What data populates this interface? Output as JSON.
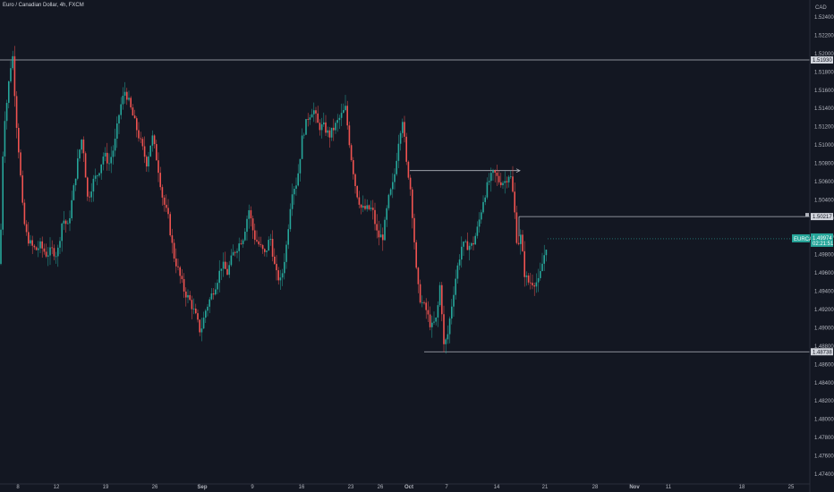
{
  "header": {
    "title": "Euro / Canadian Dollar, 4h, FXCM"
  },
  "currency_label": "CAD",
  "symbol_label": "EURCAD",
  "price_tag": {
    "price": "1.49974",
    "countdown": "02:21:51"
  },
  "colors": {
    "background": "#131722",
    "up": "#26a69a",
    "down": "#ef5350",
    "line": "#b2b5be",
    "price_tag": "#26a69a"
  },
  "chart_data": {
    "type": "candlestick",
    "title": "Euro / Canadian Dollar, 4h, FXCM",
    "ylabel": "CAD",
    "ylim": [
      1.473,
      1.525
    ],
    "y_ticks": [
      "1.52400",
      "1.52200",
      "1.52000",
      "1.51800",
      "1.51600",
      "1.51400",
      "1.51200",
      "1.51000",
      "1.50800",
      "1.50600",
      "1.50400",
      "1.50200",
      "1.50000",
      "1.49800",
      "1.49600",
      "1.49400",
      "1.49200",
      "1.49000",
      "1.48800",
      "1.48600",
      "1.48400",
      "1.48200",
      "1.48000",
      "1.47800",
      "1.47600",
      "1.47400"
    ],
    "x_ticks": [
      "8",
      "12",
      "19",
      "26",
      "Sep",
      "9",
      "16",
      "23",
      "26",
      "Oct",
      "7",
      "14",
      "21",
      "28",
      "Nov",
      "11",
      "18",
      "25"
    ],
    "horizontal_lines": [
      {
        "price": "1.51930",
        "label": "1.51930"
      },
      {
        "price": "1.50217",
        "label": "1.50217"
      },
      {
        "price": "1.48738",
        "label": "1.48738"
      }
    ],
    "trend_line": {
      "price": 1.5072
    },
    "last_price": 1.49974,
    "path_points": [
      [
        0,
        1.497
      ],
      [
        4,
        1.512
      ],
      [
        8,
        1.515
      ],
      [
        11,
        1.518
      ],
      [
        14,
        1.52
      ],
      [
        18,
        1.513
      ],
      [
        22,
        1.508
      ],
      [
        26,
        1.502
      ],
      [
        30,
        1.5
      ],
      [
        35,
        1.499
      ],
      [
        40,
        1.4985
      ],
      [
        45,
        1.499
      ],
      [
        52,
        1.498
      ],
      [
        58,
        1.4985
      ],
      [
        64,
        1.498
      ],
      [
        70,
        1.502
      ],
      [
        76,
        1.501
      ],
      [
        82,
        1.505
      ],
      [
        88,
        1.509
      ],
      [
        92,
        1.511
      ],
      [
        98,
        1.504
      ],
      [
        104,
        1.506
      ],
      [
        110,
        1.507
      ],
      [
        116,
        1.509
      ],
      [
        122,
        1.508
      ],
      [
        128,
        1.51
      ],
      [
        134,
        1.514
      ],
      [
        140,
        1.516
      ],
      [
        146,
        1.514
      ],
      [
        152,
        1.512
      ],
      [
        158,
        1.51
      ],
      [
        164,
        1.508
      ],
      [
        170,
        1.511
      ],
      [
        176,
        1.508
      ],
      [
        182,
        1.504
      ],
      [
        188,
        1.502
      ],
      [
        194,
        1.498
      ],
      [
        200,
        1.496
      ],
      [
        206,
        1.494
      ],
      [
        212,
        1.493
      ],
      [
        218,
        1.4915
      ],
      [
        224,
        1.4895
      ],
      [
        230,
        1.492
      ],
      [
        236,
        1.4935
      ],
      [
        242,
        1.495
      ],
      [
        248,
        1.497
      ],
      [
        254,
        1.496
      ],
      [
        260,
        1.498
      ],
      [
        266,
        1.499
      ],
      [
        272,
        1.5
      ],
      [
        278,
        1.503
      ],
      [
        284,
        1.5
      ],
      [
        290,
        1.499
      ],
      [
        296,
        1.498
      ],
      [
        302,
        1.5
      ],
      [
        308,
        1.496
      ],
      [
        314,
        1.495
      ],
      [
        320,
        1.499
      ],
      [
        326,
        1.505
      ],
      [
        332,
        1.506
      ],
      [
        338,
        1.511
      ],
      [
        344,
        1.513
      ],
      [
        350,
        1.514
      ],
      [
        356,
        1.512
      ],
      [
        362,
        1.512
      ],
      [
        368,
        1.511
      ],
      [
        374,
        1.512
      ],
      [
        380,
        1.513
      ],
      [
        386,
        1.514
      ],
      [
        392,
        1.509
      ],
      [
        398,
        1.505
      ],
      [
        404,
        1.503
      ],
      [
        410,
        1.503
      ],
      [
        416,
        1.503
      ],
      [
        422,
        1.5
      ],
      [
        428,
        1.5
      ],
      [
        434,
        1.504
      ],
      [
        440,
        1.506
      ],
      [
        446,
        1.511
      ],
      [
        450,
        1.513
      ],
      [
        454,
        1.508
      ],
      [
        458,
        1.506
      ],
      [
        462,
        1.501
      ],
      [
        466,
        1.495
      ],
      [
        470,
        1.493
      ],
      [
        476,
        1.492
      ],
      [
        482,
        1.49
      ],
      [
        488,
        1.491
      ],
      [
        492,
        1.495
      ],
      [
        496,
        1.488
      ],
      [
        500,
        1.489
      ],
      [
        504,
        1.492
      ],
      [
        510,
        1.496
      ],
      [
        516,
        1.499
      ],
      [
        522,
        1.499
      ],
      [
        528,
        1.499
      ],
      [
        534,
        1.501
      ],
      [
        540,
        1.504
      ],
      [
        546,
        1.506
      ],
      [
        552,
        1.507
      ],
      [
        558,
        1.506
      ],
      [
        564,
        1.506
      ],
      [
        570,
        1.507
      ],
      [
        574,
        1.504
      ],
      [
        578,
        1.499
      ],
      [
        582,
        1.5
      ],
      [
        586,
        1.496
      ],
      [
        590,
        1.495
      ],
      [
        596,
        1.495
      ],
      [
        602,
        1.495
      ],
      [
        606,
        1.497
      ],
      [
        612,
        1.4997
      ]
    ]
  }
}
